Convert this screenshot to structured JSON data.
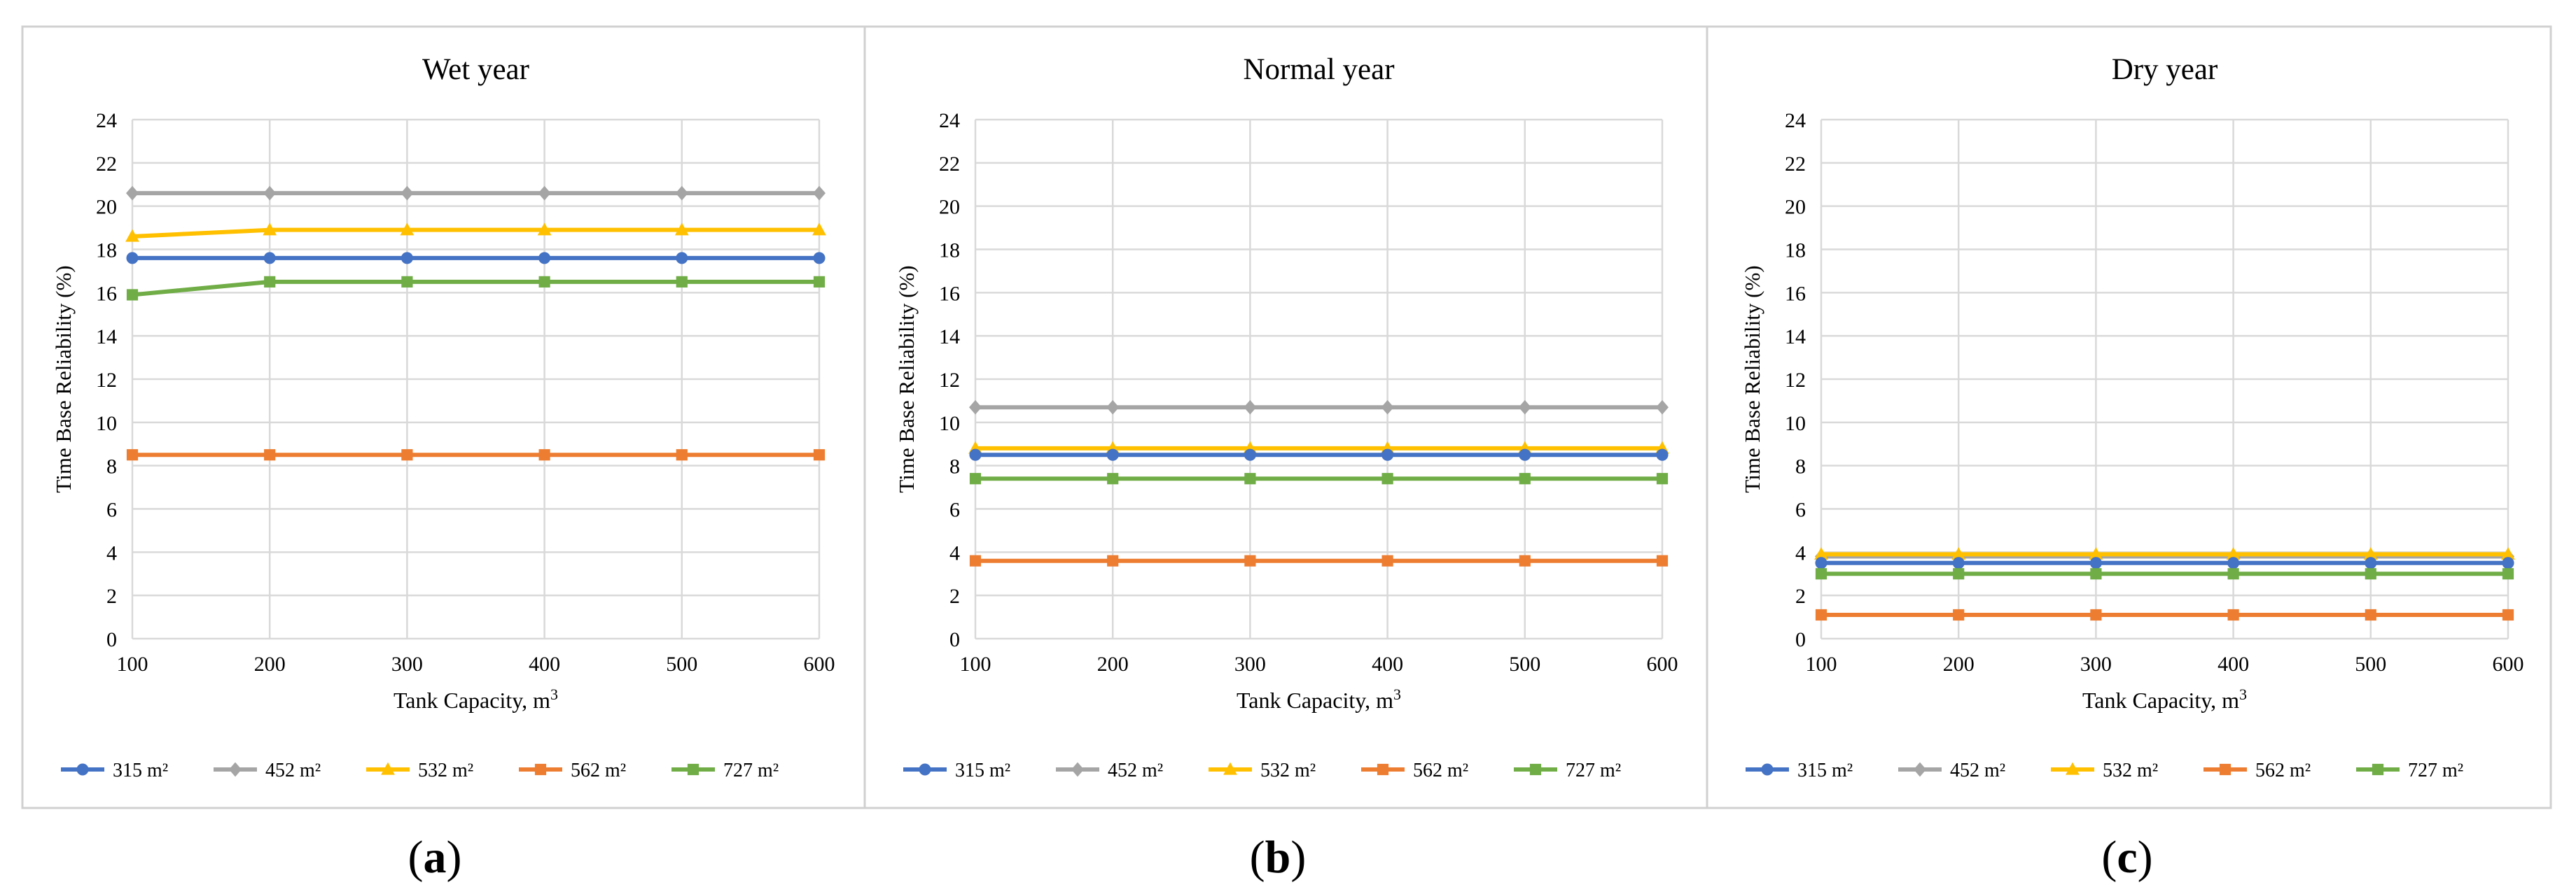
{
  "colors": {
    "315": "#4472C4",
    "452": "#A5A5A5",
    "532": "#FFC000",
    "562": "#ED7D31",
    "727": "#70AD47",
    "grid": "#d9d9d9",
    "frame": "#d0d0d0"
  },
  "chart_data": [
    {
      "type": "line",
      "title": "Wet year",
      "caption_letter": "a",
      "xlabel": "Tank Capacity, m",
      "xlabel_superscript": "3",
      "ylabel": "Time Base Reliability (%)",
      "categories": [
        "100",
        "200",
        "300",
        "400",
        "500",
        "600"
      ],
      "ylim": [
        0,
        24
      ],
      "yticks": [
        "0",
        "2",
        "4",
        "6",
        "8",
        "10",
        "12",
        "14",
        "16",
        "18",
        "20",
        "22",
        "24"
      ],
      "grid": true,
      "legend_position": "bottom",
      "series": [
        {
          "name": "315 m²",
          "key": "315",
          "marker": "circle",
          "values": [
            17.6,
            17.6,
            17.6,
            17.6,
            17.6,
            17.6
          ]
        },
        {
          "name": "452 m²",
          "key": "452",
          "marker": "diamond",
          "values": [
            20.6,
            20.6,
            20.6,
            20.6,
            20.6,
            20.6
          ]
        },
        {
          "name": "532 m²",
          "key": "532",
          "marker": "triangle",
          "values": [
            18.6,
            18.9,
            18.9,
            18.9,
            18.9,
            18.9
          ]
        },
        {
          "name": "562 m²",
          "key": "562",
          "marker": "square",
          "values": [
            8.5,
            8.5,
            8.5,
            8.5,
            8.5,
            8.5
          ]
        },
        {
          "name": "727 m²",
          "key": "727",
          "marker": "square",
          "values": [
            15.9,
            16.5,
            16.5,
            16.5,
            16.5,
            16.5
          ]
        }
      ]
    },
    {
      "type": "line",
      "title": "Normal year",
      "caption_letter": "b",
      "xlabel": "Tank Capacity, m",
      "xlabel_superscript": "3",
      "ylabel": "Time Base Reliability (%)",
      "categories": [
        "100",
        "200",
        "300",
        "400",
        "500",
        "600"
      ],
      "ylim": [
        0,
        24
      ],
      "yticks": [
        "0",
        "2",
        "4",
        "6",
        "8",
        "10",
        "12",
        "14",
        "16",
        "18",
        "20",
        "22",
        "24"
      ],
      "grid": true,
      "legend_position": "bottom",
      "series": [
        {
          "name": "315 m²",
          "key": "315",
          "marker": "circle",
          "values": [
            8.5,
            8.5,
            8.5,
            8.5,
            8.5,
            8.5
          ]
        },
        {
          "name": "452 m²",
          "key": "452",
          "marker": "diamond",
          "values": [
            10.7,
            10.7,
            10.7,
            10.7,
            10.7,
            10.7
          ]
        },
        {
          "name": "532 m²",
          "key": "532",
          "marker": "triangle",
          "values": [
            8.8,
            8.8,
            8.8,
            8.8,
            8.8,
            8.8
          ]
        },
        {
          "name": "562 m²",
          "key": "562",
          "marker": "square",
          "values": [
            3.6,
            3.6,
            3.6,
            3.6,
            3.6,
            3.6
          ]
        },
        {
          "name": "727 m²",
          "key": "727",
          "marker": "square",
          "values": [
            7.4,
            7.4,
            7.4,
            7.4,
            7.4,
            7.4
          ]
        }
      ]
    },
    {
      "type": "line",
      "title": "Dry year",
      "caption_letter": "c",
      "xlabel": "Tank Capacity, m",
      "xlabel_superscript": "3",
      "ylabel": "Time Base Reliability (%)",
      "categories": [
        "100",
        "200",
        "300",
        "400",
        "500",
        "600"
      ],
      "ylim": [
        0,
        24
      ],
      "yticks": [
        "0",
        "2",
        "4",
        "6",
        "8",
        "10",
        "12",
        "14",
        "16",
        "18",
        "20",
        "22",
        "24"
      ],
      "grid": true,
      "legend_position": "bottom",
      "series": [
        {
          "name": "315 m²",
          "key": "315",
          "marker": "circle",
          "values": [
            3.5,
            3.5,
            3.5,
            3.5,
            3.5,
            3.5
          ]
        },
        {
          "name": "452 m²",
          "key": "452",
          "marker": "diamond",
          "values": [
            3.8,
            3.8,
            3.8,
            3.8,
            3.8,
            3.8
          ]
        },
        {
          "name": "532 m²",
          "key": "532",
          "marker": "triangle",
          "values": [
            3.9,
            3.9,
            3.9,
            3.9,
            3.9,
            3.9
          ]
        },
        {
          "name": "562 m²",
          "key": "562",
          "marker": "square",
          "values": [
            1.1,
            1.1,
            1.1,
            1.1,
            1.1,
            1.1
          ]
        },
        {
          "name": "727 m²",
          "key": "727",
          "marker": "square",
          "values": [
            3.0,
            3.0,
            3.0,
            3.0,
            3.0,
            3.0
          ]
        }
      ]
    }
  ]
}
